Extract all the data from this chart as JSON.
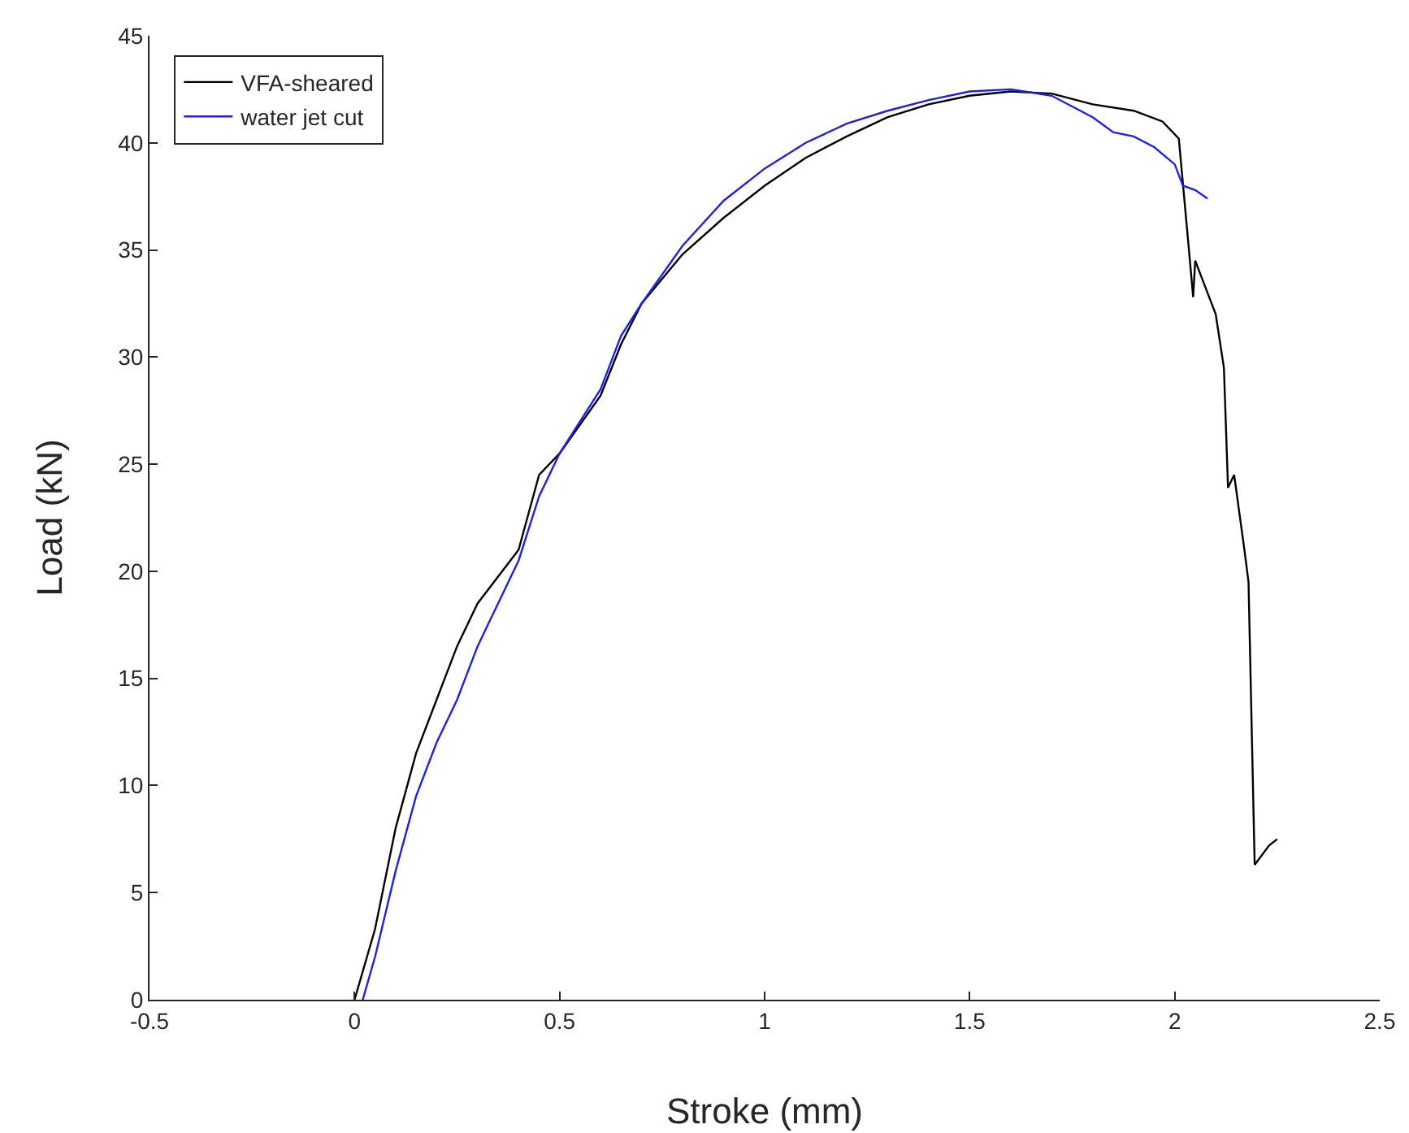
{
  "chart_data": {
    "type": "line",
    "xlabel": "Stroke (mm)",
    "ylabel": "Load (kN)",
    "xlim": [
      -0.5,
      2.5
    ],
    "xticks": [
      -0.5,
      0,
      0.5,
      1,
      1.5,
      2,
      2.5
    ],
    "ylim": [
      0,
      45
    ],
    "yticks": [
      0,
      5,
      10,
      15,
      20,
      25,
      30,
      35,
      40,
      45
    ],
    "grid": false,
    "legend": "top left",
    "marker": "none",
    "line_style": "solid",
    "series": [
      {
        "name": "VFA-sheared",
        "color": "#000000",
        "x": [
          0,
          0.05,
          0.1,
          0.15,
          0.2,
          0.25,
          0.3,
          0.4,
          0.45,
          0.5,
          0.6,
          0.65,
          0.7,
          0.8,
          0.9,
          1.0,
          1.1,
          1.2,
          1.3,
          1.4,
          1.5,
          1.6,
          1.7,
          1.8,
          1.9,
          1.97,
          2.01,
          2.03,
          2.045,
          2.05,
          2.07,
          2.1,
          2.12,
          2.13,
          2.145,
          2.17,
          2.18,
          2.195,
          2.23,
          2.25
        ],
        "values": [
          0,
          3.3,
          8,
          11.5,
          14,
          16.5,
          18.5,
          21,
          24.5,
          25.5,
          28.2,
          30.6,
          32.5,
          34.8,
          36.5,
          38,
          39.3,
          40.3,
          41.2,
          41.8,
          42.2,
          42.4,
          42.3,
          41.8,
          41.5,
          41,
          40.2,
          36,
          32.8,
          34.5,
          33.5,
          32,
          29.5,
          23.9,
          24.5,
          21,
          19.5,
          6.3,
          7.2,
          7.5
        ]
      },
      {
        "name": "water jet cut",
        "color": "#2020e0",
        "x": [
          0.02,
          0.05,
          0.1,
          0.15,
          0.2,
          0.25,
          0.3,
          0.35,
          0.4,
          0.45,
          0.5,
          0.6,
          0.65,
          0.7,
          0.8,
          0.9,
          1.0,
          1.1,
          1.2,
          1.3,
          1.4,
          1.5,
          1.6,
          1.7,
          1.8,
          1.85,
          1.9,
          1.95,
          2.0,
          2.02,
          2.05,
          2.08
        ],
        "values": [
          0,
          2,
          6,
          9.5,
          12,
          14,
          16.5,
          18.5,
          20.5,
          23.5,
          25.5,
          28.5,
          31,
          32.5,
          35.2,
          37.3,
          38.8,
          40,
          40.9,
          41.5,
          42,
          42.4,
          42.5,
          42.2,
          41.2,
          40.5,
          40.3,
          39.8,
          39,
          38,
          37.8,
          37.4
        ]
      }
    ]
  }
}
